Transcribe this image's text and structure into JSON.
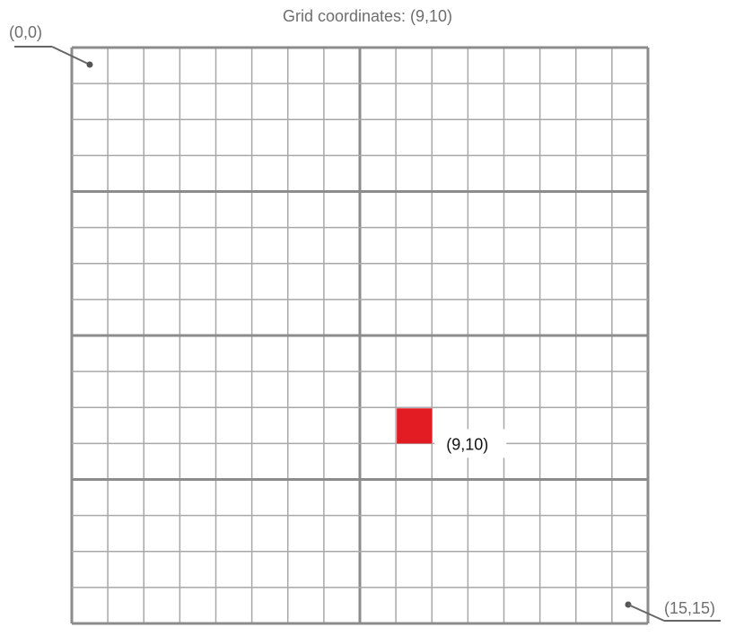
{
  "title": "Grid coordinates: (9,10)",
  "grid": {
    "columns": 16,
    "rows": 16,
    "major_column_every": 8,
    "major_row_every": 4,
    "line_color": "#a8a8a8",
    "major_line_color": "#8c8c8c"
  },
  "origin_label": "(0,0)",
  "end_label": "(15,15)",
  "highlight": {
    "col": 9,
    "row": 10,
    "label": "(9,10)",
    "color": "#e31b23"
  }
}
